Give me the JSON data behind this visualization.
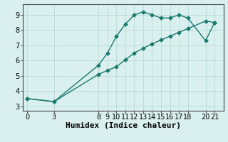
{
  "line1_x": [
    0,
    3,
    8,
    9,
    10,
    11,
    12,
    13,
    14,
    15,
    16,
    17,
    18,
    20,
    21
  ],
  "line1_y": [
    3.5,
    3.3,
    5.7,
    6.5,
    7.6,
    8.4,
    9.0,
    9.2,
    9.0,
    8.8,
    8.8,
    9.0,
    8.8,
    7.3,
    8.5
  ],
  "line2_x": [
    0,
    3,
    8,
    9,
    10,
    11,
    12,
    13,
    14,
    15,
    16,
    17,
    18,
    20,
    21
  ],
  "line2_y": [
    3.5,
    3.3,
    5.1,
    5.35,
    5.6,
    6.05,
    6.5,
    6.8,
    7.1,
    7.35,
    7.6,
    7.85,
    8.1,
    8.6,
    8.5
  ],
  "color": "#1a7a6e",
  "bg_color": "#d9f0ee",
  "grid_color": "#b8dbd8",
  "xlabel": "Humidex (Indice chaleur)",
  "xticks": [
    0,
    3,
    8,
    9,
    10,
    11,
    12,
    13,
    14,
    15,
    16,
    17,
    18,
    20,
    21
  ],
  "yticks": [
    3,
    4,
    5,
    6,
    7,
    8,
    9
  ],
  "ylim": [
    2.7,
    9.7
  ],
  "xlim": [
    -0.5,
    22.0
  ],
  "xlabel_fontsize": 8,
  "tick_fontsize": 7,
  "marker": "D",
  "markersize": 2.5,
  "linewidth": 1.0
}
